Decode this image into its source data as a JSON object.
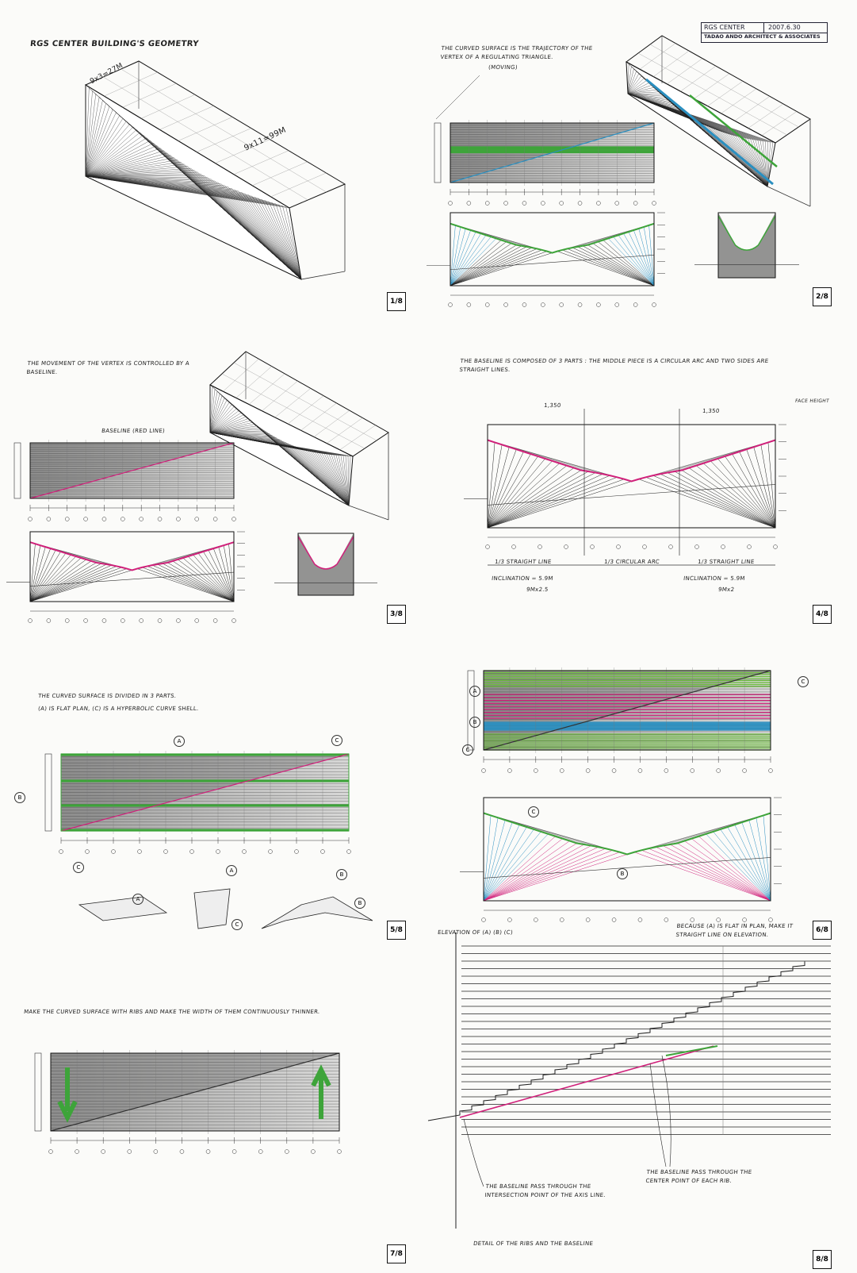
{
  "header": {
    "title": "RGS CENTER BUILDING'S GEOMETRY",
    "stamp": {
      "project": "RGS CENTER",
      "date": "2007.6.30",
      "office": "TADAO ANDO ARCHITECT & ASSOCIATES"
    }
  },
  "panels": [
    {
      "number": "1/8",
      "labels": [
        "9x3=27M",
        "9x11=99M"
      ]
    },
    {
      "number": "2/8",
      "note": "THE CURVED SURFACE IS THE TRAJECTORY OF THE VERTEX OF A REGULATING TRIANGLE.",
      "labels": [
        "(MOVING)"
      ]
    },
    {
      "number": "3/8",
      "note": "THE MOVEMENT OF THE VERTEX IS CONTROLLED BY A BASELINE.",
      "labels": [
        "BASELINE (RED LINE)"
      ]
    },
    {
      "number": "4/8",
      "note": "THE BASELINE IS COMPOSED OF 3 PARTS : THE MIDDLE PIECE IS A CIRCULAR ARC AND TWO SIDES ARE STRAIGHT LINES.",
      "labels": [
        "1,350",
        "1,350",
        "FACE HEIGHT",
        "1/3 STRAIGHT LINE",
        "1/3 CIRCULAR ARC",
        "1/3 STRAIGHT LINE",
        "INCLINATION = 5.9M",
        "9Mx2.5",
        "INCLINATION = 5.9M",
        "9Mx2"
      ]
    },
    {
      "number": "5/8",
      "note": [
        "THE CURVED SURFACE IS DIVIDED IN 3 PARTS.",
        "(A) IS FLAT PLAN, (C) IS A HYPERBOLIC CURVE SHELL."
      ],
      "labels": [
        "A",
        "C",
        "B",
        "C",
        "A",
        "B",
        "A",
        "C",
        "B"
      ]
    },
    {
      "number": "6/8",
      "note": "ELEVATION OF (A) (B) (C)",
      "labels": [
        "BECAUSE (A) IS FLAT IN PLAN, MAKE IT STRAIGHT LINE ON ELEVATION.",
        "A",
        "B",
        "C",
        "C",
        "C",
        "B"
      ]
    },
    {
      "number": "7/8",
      "note": "MAKE THE CURVED SURFACE WITH RIBS AND MAKE THE WIDTH OF THEM CONTINUOUSLY THINNER."
    },
    {
      "number": "8/8",
      "note": "DETAIL OF THE RIBS AND THE BASELINE",
      "labels": [
        "THE BASELINE PASS THROUGH THE INTERSECTION POINT OF THE AXIS LINE.",
        "THE BASELINE PASS THROUGH THE CENTER POINT OF EACH RIB."
      ]
    }
  ]
}
